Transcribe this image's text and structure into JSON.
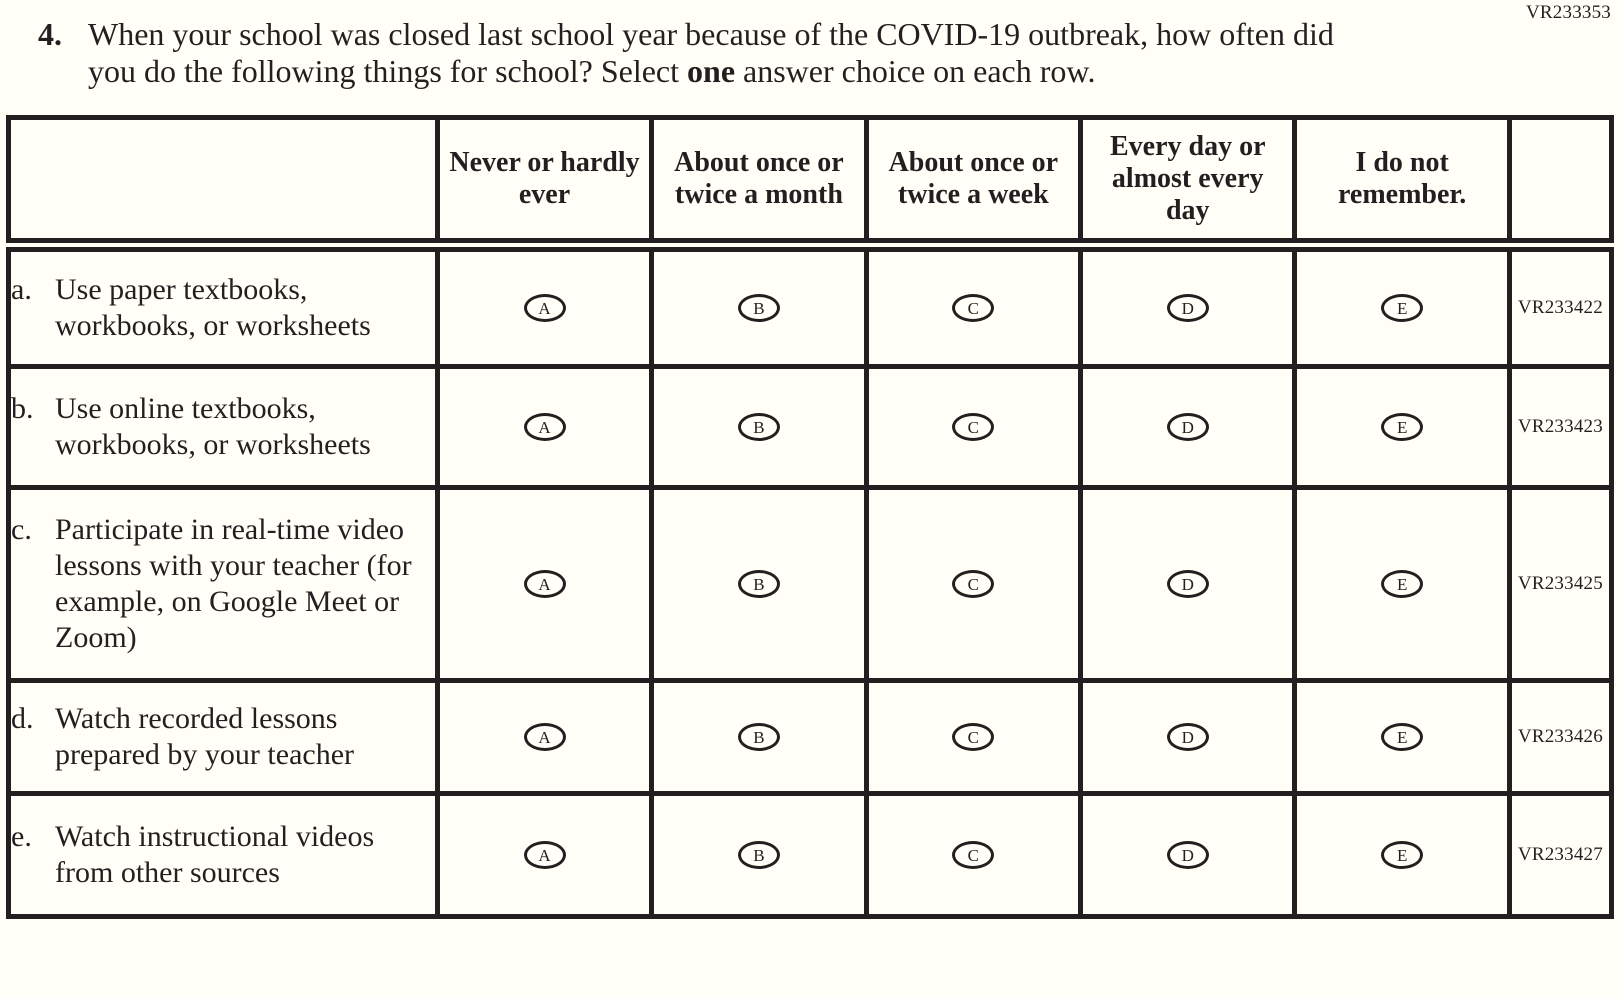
{
  "page_code": "VR233353",
  "question": {
    "number": "4.",
    "text_part1": "When your school was closed last school year because of the COVID-19 outbreak, how often did you do the following things for school? Select ",
    "text_bold": "one",
    "text_part2": " answer choice on each row."
  },
  "table": {
    "column_headers": [
      "Never or hardly ever",
      "About once or twice a month",
      "About once or twice a week",
      "Every day or almost every day",
      "I do not remember."
    ],
    "answer_options": [
      "A",
      "B",
      "C",
      "D",
      "E"
    ],
    "rows": [
      {
        "letter": "a.",
        "label": "Use paper textbooks, workbooks, or worksheets",
        "code": "VR233422"
      },
      {
        "letter": "b.",
        "label": "Use online textbooks, workbooks, or worksheets",
        "code": "VR233423"
      },
      {
        "letter": "c.",
        "label": "Participate in real-time video lessons with your teacher (for example, on Google Meet or Zoom)",
        "code": "VR233425"
      },
      {
        "letter": "d.",
        "label": "Watch recorded lessons prepared by your teacher",
        "code": "VR233426"
      },
      {
        "letter": "e.",
        "label": "Watch instructional videos from other sources",
        "code": "VR233427"
      }
    ]
  },
  "colors": {
    "background": "#fffef7",
    "ink": "#231f20"
  }
}
